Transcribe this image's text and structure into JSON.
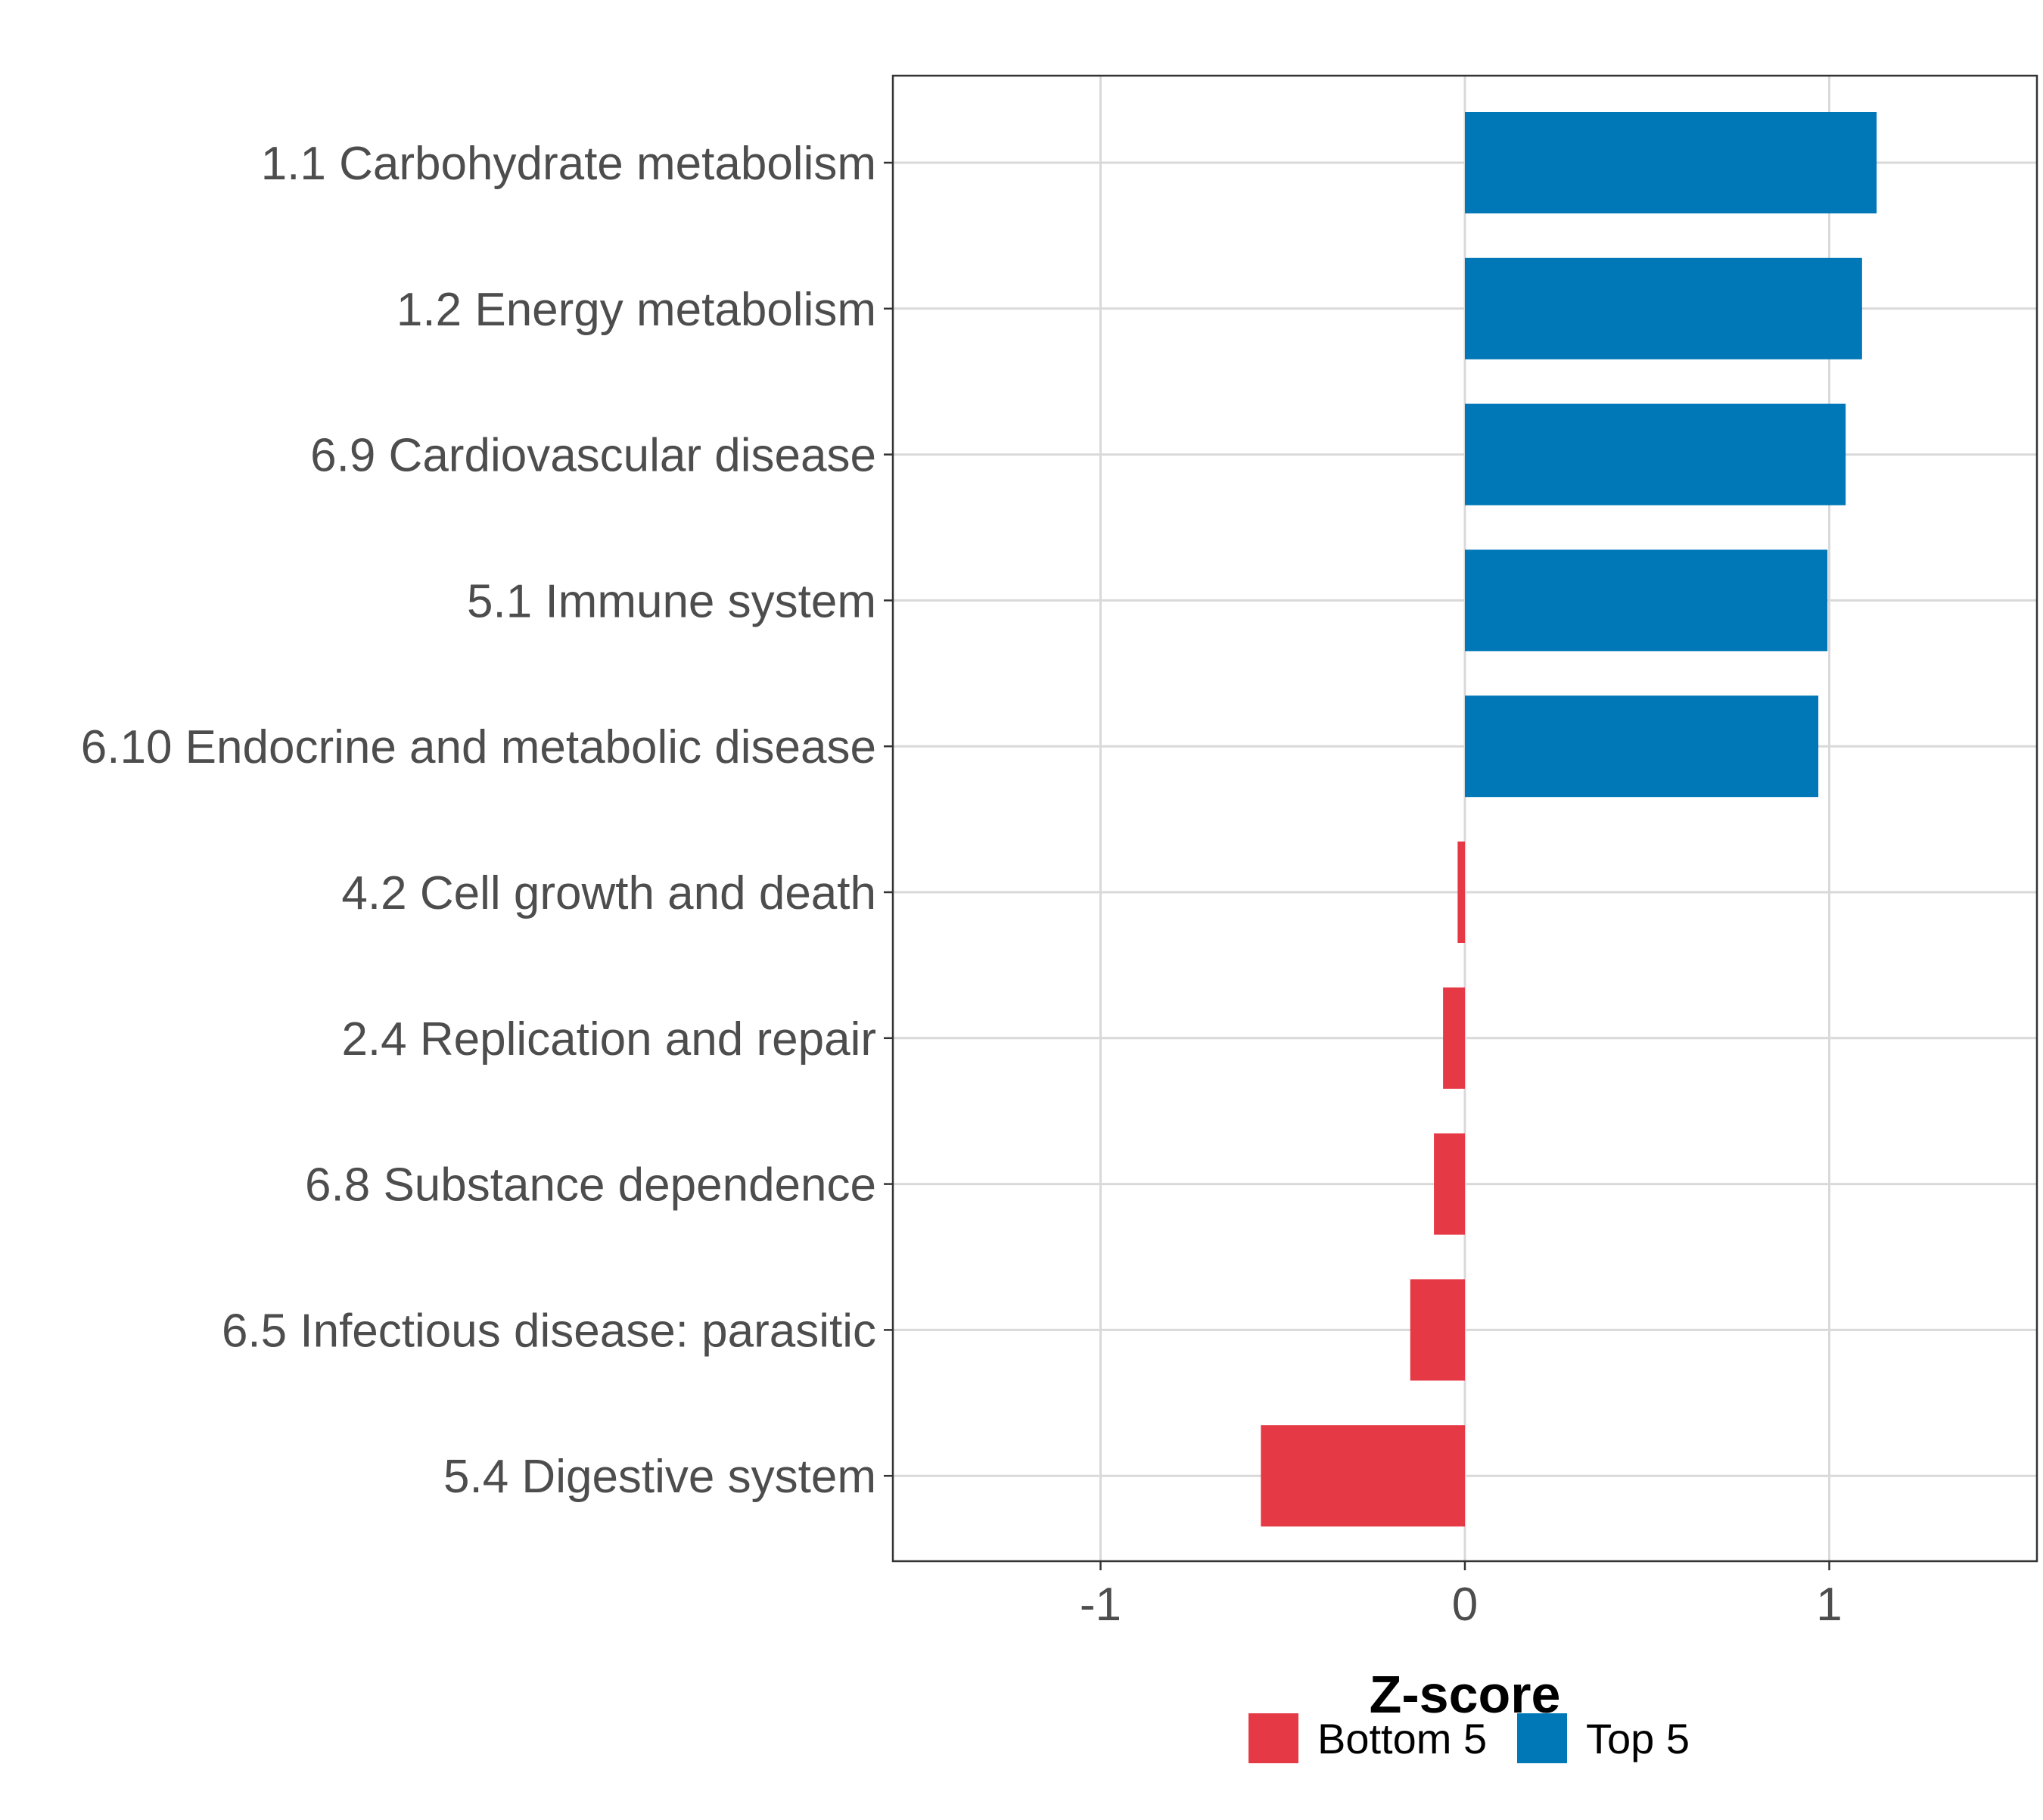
{
  "chart_data": {
    "type": "bar",
    "orientation": "horizontal",
    "title": "",
    "xlabel": "Z-score",
    "ylabel": "",
    "xlim": [
      -1.57,
      1.57
    ],
    "xticks": [
      -1,
      0,
      1
    ],
    "xtick_labels": [
      "-1",
      "0",
      "1"
    ],
    "grid": true,
    "categories": [
      "1.1 Carbohydrate metabolism",
      "1.2 Energy metabolism",
      "6.9 Cardiovascular disease",
      "5.1 Immune system",
      "6.10 Endocrine and metabolic disease",
      "4.2 Cell growth and death",
      "2.4 Replication and repair",
      "6.8 Substance dependence",
      "6.5 Infectious disease: parasitic",
      "5.4 Digestive system"
    ],
    "values": [
      1.13,
      1.09,
      1.045,
      0.995,
      0.97,
      -0.02,
      -0.06,
      -0.085,
      -0.15,
      -0.56
    ],
    "groups": [
      "Top 5",
      "Top 5",
      "Top 5",
      "Top 5",
      "Top 5",
      "Bottom 5",
      "Bottom 5",
      "Bottom 5",
      "Bottom 5",
      "Bottom 5"
    ],
    "legend": {
      "position": "bottom",
      "entries": [
        {
          "label": "Bottom 5",
          "color": "#E63946"
        },
        {
          "label": "Top 5",
          "color": "#0077B6"
        }
      ]
    }
  }
}
